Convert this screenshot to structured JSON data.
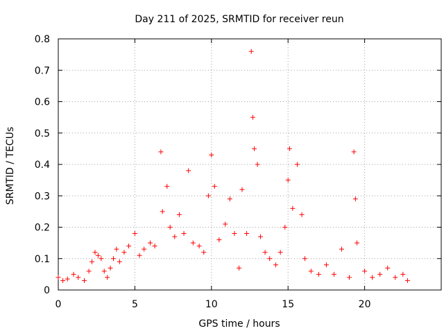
{
  "chart_data": {
    "type": "scatter",
    "title": "Day 211 of 2025, SRMTID for receiver reun",
    "xlabel": "GPS time / hours",
    "ylabel": "SRMTID / TECUs",
    "xlim": [
      0,
      25
    ],
    "ylim": [
      0,
      0.8
    ],
    "xticks": [
      0,
      5,
      10,
      15,
      20
    ],
    "yticks": [
      0,
      0.1,
      0.2,
      0.3,
      0.4,
      0.5,
      0.6,
      0.7,
      0.8
    ],
    "xtick_labels": [
      "0",
      "5",
      "10",
      "15",
      "20"
    ],
    "ytick_labels": [
      "0",
      "0.1",
      "0.2",
      "0.3",
      "0.4",
      "0.5",
      "0.6",
      "0.7",
      "0.8"
    ],
    "grid": true,
    "marker": "+",
    "color": "#ff0000",
    "series": [
      {
        "name": "SRMTID",
        "points": [
          [
            0.0,
            0.04
          ],
          [
            0.3,
            0.03
          ],
          [
            0.6,
            0.035
          ],
          [
            1.0,
            0.05
          ],
          [
            1.3,
            0.04
          ],
          [
            1.7,
            0.03
          ],
          [
            2.0,
            0.06
          ],
          [
            2.2,
            0.09
          ],
          [
            2.4,
            0.12
          ],
          [
            2.6,
            0.11
          ],
          [
            2.8,
            0.1
          ],
          [
            3.0,
            0.06
          ],
          [
            3.2,
            0.04
          ],
          [
            3.4,
            0.07
          ],
          [
            3.6,
            0.1
          ],
          [
            3.8,
            0.13
          ],
          [
            4.0,
            0.09
          ],
          [
            4.3,
            0.12
          ],
          [
            4.6,
            0.14
          ],
          [
            5.0,
            0.18
          ],
          [
            5.3,
            0.11
          ],
          [
            5.6,
            0.13
          ],
          [
            6.0,
            0.15
          ],
          [
            6.3,
            0.14
          ],
          [
            6.7,
            0.44
          ],
          [
            6.8,
            0.25
          ],
          [
            7.1,
            0.33
          ],
          [
            7.3,
            0.2
          ],
          [
            7.6,
            0.17
          ],
          [
            7.9,
            0.24
          ],
          [
            8.2,
            0.18
          ],
          [
            8.5,
            0.38
          ],
          [
            8.8,
            0.15
          ],
          [
            9.2,
            0.14
          ],
          [
            9.5,
            0.12
          ],
          [
            9.8,
            0.3
          ],
          [
            10.0,
            0.43
          ],
          [
            10.2,
            0.33
          ],
          [
            10.5,
            0.16
          ],
          [
            10.9,
            0.21
          ],
          [
            11.2,
            0.29
          ],
          [
            11.5,
            0.18
          ],
          [
            11.8,
            0.07
          ],
          [
            12.0,
            0.32
          ],
          [
            12.3,
            0.18
          ],
          [
            12.6,
            0.76
          ],
          [
            12.7,
            0.55
          ],
          [
            12.8,
            0.45
          ],
          [
            13.0,
            0.4
          ],
          [
            13.2,
            0.17
          ],
          [
            13.5,
            0.12
          ],
          [
            13.8,
            0.1
          ],
          [
            14.2,
            0.08
          ],
          [
            14.5,
            0.12
          ],
          [
            14.8,
            0.2
          ],
          [
            15.0,
            0.35
          ],
          [
            15.1,
            0.45
          ],
          [
            15.3,
            0.26
          ],
          [
            15.6,
            0.4
          ],
          [
            15.9,
            0.24
          ],
          [
            16.1,
            0.1
          ],
          [
            16.5,
            0.06
          ],
          [
            17.0,
            0.05
          ],
          [
            17.5,
            0.08
          ],
          [
            18.0,
            0.05
          ],
          [
            18.5,
            0.13
          ],
          [
            19.0,
            0.04
          ],
          [
            19.3,
            0.44
          ],
          [
            19.4,
            0.29
          ],
          [
            19.5,
            0.15
          ],
          [
            20.0,
            0.06
          ],
          [
            20.5,
            0.04
          ],
          [
            21.0,
            0.05
          ],
          [
            21.5,
            0.07
          ],
          [
            22.0,
            0.04
          ],
          [
            22.5,
            0.05
          ],
          [
            22.8,
            0.03
          ]
        ]
      }
    ]
  }
}
